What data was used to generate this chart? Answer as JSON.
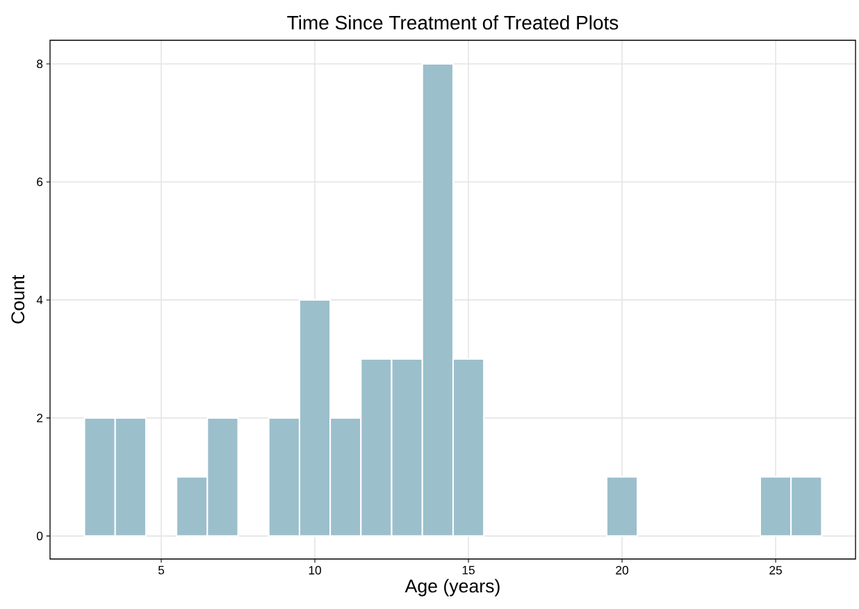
{
  "chart_data": {
    "type": "histogram",
    "title": "Time Since Treatment of Treated Plots",
    "xlabel": "Age (years)",
    "ylabel": "Count",
    "bins": [
      2.5,
      3.5,
      4.5,
      5.5,
      6.5,
      7.5,
      8.5,
      9.5,
      10.5,
      11.5,
      12.5,
      13.5,
      14.5,
      15.5,
      16.5,
      17.5,
      18.5,
      19.5,
      20.5,
      21.5,
      22.5,
      23.5,
      24.5,
      25.5,
      26.5
    ],
    "values": [
      2,
      2,
      0,
      1,
      2,
      0,
      2,
      4,
      2,
      3,
      3,
      8,
      3,
      0,
      0,
      0,
      0,
      1,
      0,
      0,
      0,
      0,
      1,
      1
    ],
    "color": "#9cbfcc",
    "xlim": [
      1.38,
      27.6
    ],
    "ylim": [
      -0.39,
      8.4
    ],
    "xticks": [
      5,
      10,
      15,
      20,
      25
    ],
    "yticks": [
      0,
      2,
      4,
      6,
      8
    ],
    "grid": true
  }
}
